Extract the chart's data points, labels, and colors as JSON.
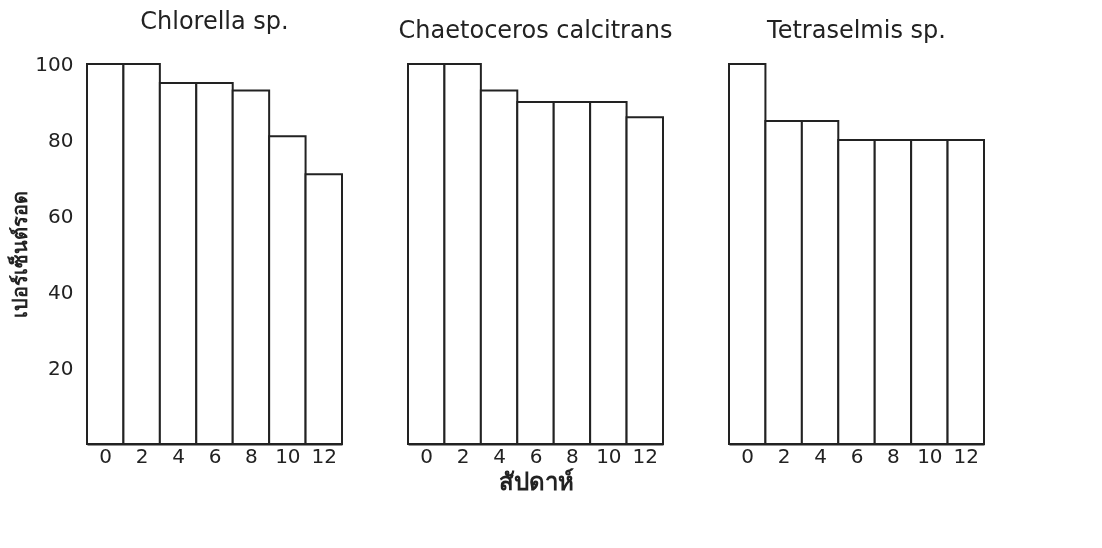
{
  "chart_data": [
    {
      "type": "bar",
      "title": "Chlorella sp.",
      "ylabel": "เปอร์เซ็นต์รอด",
      "categories": [
        "0",
        "2",
        "4",
        "6",
        "8",
        "10",
        "12"
      ],
      "values": [
        100,
        100,
        95,
        95,
        93,
        81,
        71
      ],
      "color": "#ffffff",
      "ylim": [
        0,
        100
      ],
      "yticks": [
        20,
        40,
        60,
        80,
        100
      ],
      "grid": false
    },
    {
      "type": "bar",
      "title": "Chaetoceros calcitrans",
      "xlabel": "สัปดาห์",
      "categories": [
        "0",
        "2",
        "4",
        "6",
        "8",
        "10",
        "12"
      ],
      "values": [
        100,
        100,
        93,
        90,
        90,
        90,
        86
      ],
      "color": "#ffffff",
      "ylim": [
        0,
        100
      ],
      "tick_labels": "x",
      "grid": false
    },
    {
      "type": "bar",
      "title": "Tetraselmis sp.",
      "categories": [
        "0",
        "2",
        "4",
        "6",
        "8",
        "10",
        "12"
      ],
      "values": [
        100,
        85,
        85,
        80,
        80,
        80,
        80
      ],
      "color": "#ffffff",
      "ylim": [
        0,
        100
      ],
      "tick_labels": "x",
      "grid": false
    }
  ]
}
